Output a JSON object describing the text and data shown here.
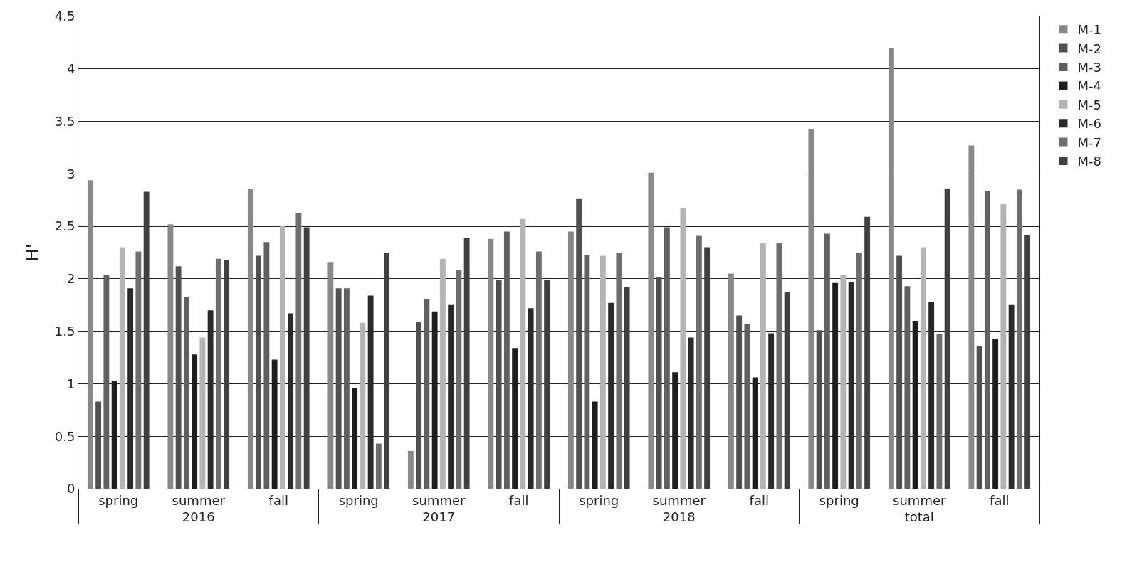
{
  "chart_data": {
    "type": "bar",
    "ylabel": "H'",
    "categories": [
      "spring",
      "summer",
      "fall",
      "spring",
      "summer",
      "fall",
      "spring",
      "summer",
      "fall",
      "spring",
      "summer",
      "fall"
    ],
    "annotations": [
      "2016",
      "2017",
      "2018",
      "total"
    ],
    "series": [
      {
        "name": "M-1",
        "color": "#888888",
        "values": [
          2.94,
          2.52,
          2.86,
          2.16,
          0.36,
          2.38,
          2.45,
          3.01,
          2.05,
          3.43,
          4.2,
          3.27
        ]
      },
      {
        "name": "M-2",
        "color": "#505050",
        "values": [
          0.83,
          2.12,
          2.22,
          1.91,
          1.59,
          1.99,
          2.76,
          2.02,
          1.65,
          1.51,
          2.22,
          1.36
        ]
      },
      {
        "name": "M-3",
        "color": "#606060",
        "values": [
          2.04,
          1.83,
          2.35,
          1.91,
          1.81,
          2.45,
          2.23,
          2.49,
          1.57,
          2.43,
          1.93,
          2.84
        ]
      },
      {
        "name": "M-4",
        "color": "#1e1e1e",
        "values": [
          1.03,
          1.28,
          1.23,
          0.96,
          1.69,
          1.34,
          0.83,
          1.11,
          1.06,
          1.96,
          1.6,
          1.43
        ]
      },
      {
        "name": "M-5",
        "color": "#b4b4b4",
        "values": [
          2.3,
          1.44,
          2.5,
          1.58,
          2.19,
          2.57,
          2.22,
          2.67,
          2.34,
          2.04,
          2.3,
          2.71
        ]
      },
      {
        "name": "M-6",
        "color": "#2a2a2a",
        "values": [
          1.91,
          1.7,
          1.67,
          1.84,
          1.75,
          1.72,
          1.77,
          1.44,
          1.48,
          1.97,
          1.78,
          1.75
        ]
      },
      {
        "name": "M-7",
        "color": "#6e6e6e",
        "values": [
          2.26,
          2.19,
          2.63,
          0.43,
          2.08,
          2.26,
          2.25,
          2.41,
          2.34,
          2.25,
          1.47,
          2.85
        ]
      },
      {
        "name": "M-8",
        "color": "#404040",
        "values": [
          2.83,
          2.18,
          2.49,
          2.25,
          2.39,
          1.99,
          1.92,
          2.3,
          1.87,
          2.59,
          2.86,
          2.42
        ]
      }
    ],
    "ylim": [
      0,
      4.5
    ],
    "yticks": [
      0,
      0.5,
      1,
      1.5,
      2,
      2.5,
      3,
      3.5,
      4,
      4.5
    ],
    "grid": "y",
    "legend": "right"
  }
}
